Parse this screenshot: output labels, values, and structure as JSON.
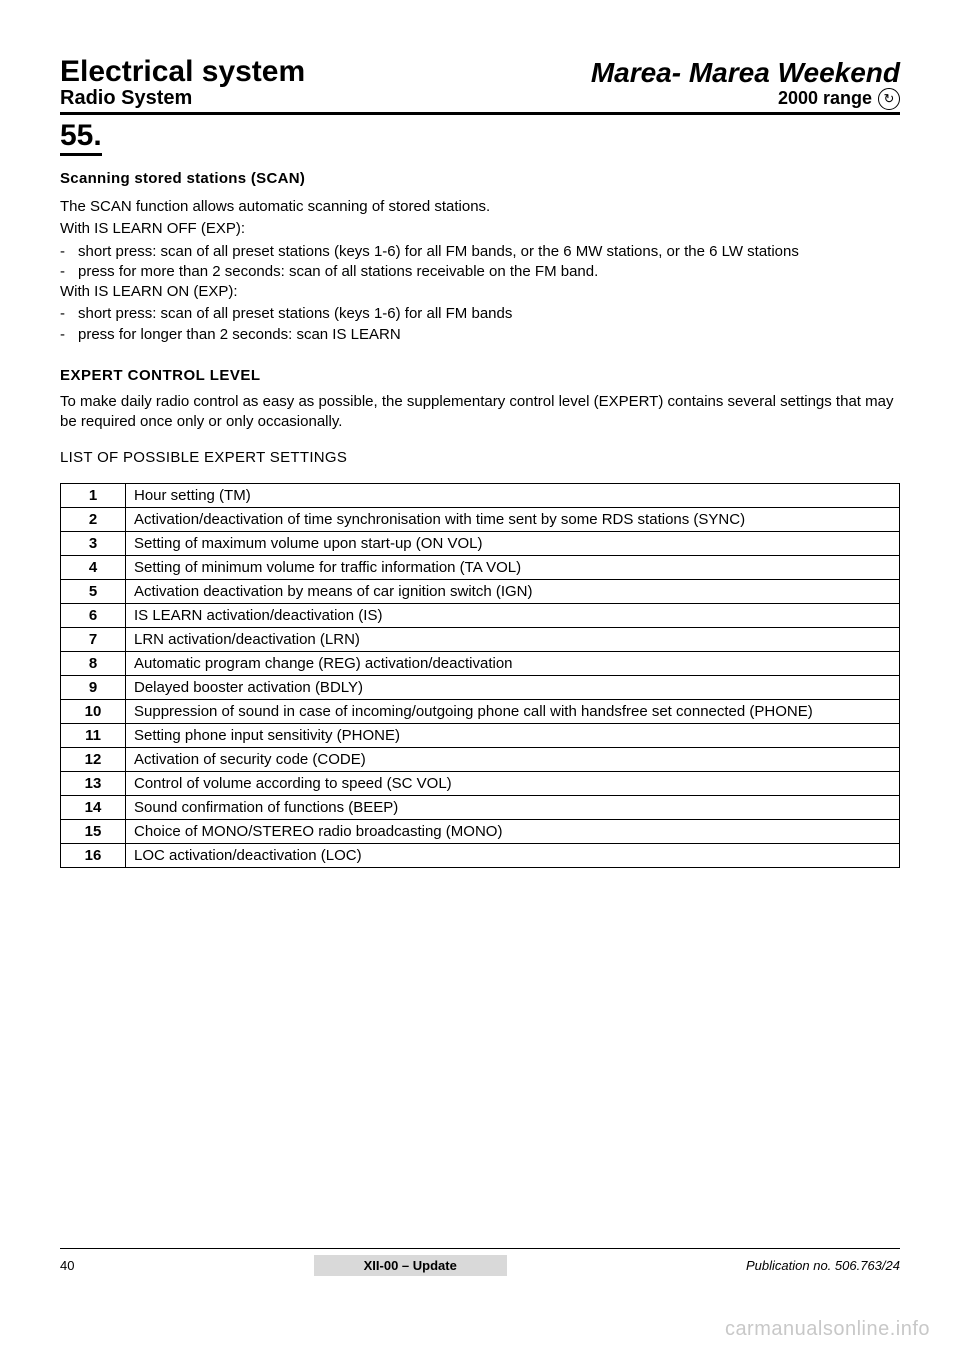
{
  "header": {
    "title_left": "Electrical system",
    "title_right": "Marea- Marea Weekend",
    "sub_left": "Radio System",
    "sub_right": "2000 range",
    "icon_glyph": "↻"
  },
  "section_number": "55.",
  "scan": {
    "heading": "Scanning stored stations (SCAN)",
    "intro": "The SCAN function allows automatic scanning of stored stations.",
    "off_label": "With IS LEARN OFF (EXP):",
    "off_items": [
      "short press: scan of all preset stations (keys 1-6) for all FM bands, or the 6 MW stations, or the 6 LW stations",
      "press for more than 2 seconds: scan of all stations receivable on the FM band."
    ],
    "on_label": "With IS LEARN ON (EXP):",
    "on_items": [
      "short press: scan of all preset stations (keys 1-6) for all FM bands",
      "press for longer than 2 seconds: scan IS LEARN"
    ]
  },
  "expert": {
    "heading": "EXPERT CONTROL LEVEL",
    "text": "To make daily radio control as easy as possible, the supplementary control level (EXPERT) contains several settings that may be required once only or only occasionally.",
    "list_heading": "LIST OF POSSIBLE EXPERT SETTINGS"
  },
  "table_rows": [
    {
      "n": "1",
      "d": "Hour setting (TM)"
    },
    {
      "n": "2",
      "d": "Activation/deactivation of time synchronisation with time sent by some RDS stations (SYNC)"
    },
    {
      "n": "3",
      "d": "Setting of maximum volume upon start-up (ON VOL)"
    },
    {
      "n": "4",
      "d": "Setting of minimum volume for traffic information (TA VOL)"
    },
    {
      "n": "5",
      "d": "Activation deactivation by means of car ignition switch (IGN)"
    },
    {
      "n": "6",
      "d": "IS LEARN activation/deactivation (IS)"
    },
    {
      "n": "7",
      "d": "LRN activation/deactivation (LRN)"
    },
    {
      "n": "8",
      "d": "Automatic program change (REG) activation/deactivation"
    },
    {
      "n": "9",
      "d": "Delayed booster activation (BDLY)"
    },
    {
      "n": "10",
      "d": "Suppression of sound in case of incoming/outgoing phone call with handsfree set connected (PHONE)",
      "justify": true
    },
    {
      "n": "11",
      "d": "Setting phone input sensitivity (PHONE)"
    },
    {
      "n": "12",
      "d": "Activation of security code (CODE)"
    },
    {
      "n": "13",
      "d": "Control of volume according to speed (SC VOL)"
    },
    {
      "n": "14",
      "d": "Sound confirmation of functions (BEEP)"
    },
    {
      "n": "15",
      "d": "Choice of MONO/STEREO radio broadcasting (MONO)"
    },
    {
      "n": "16",
      "d": "LOC activation/deactivation (LOC)"
    }
  ],
  "footer": {
    "page_no": "40",
    "center": "XII-00 – Update",
    "right": "Publication no. 506.763/24",
    "watermark": "carmanualsonline.info"
  }
}
